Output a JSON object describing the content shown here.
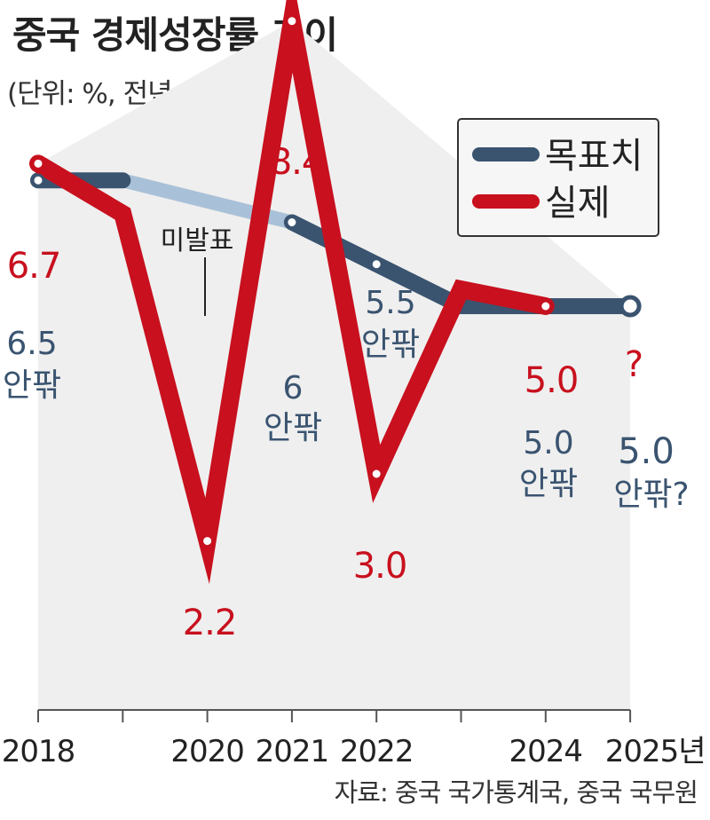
{
  "title": "중국 경제성장률 추이",
  "subtitle": "(단위: %, 전년 대비)",
  "source": "자료: 중국 국가통계국, 중국 국무원",
  "colors": {
    "target": "#3a5470",
    "target_unannounced": "#a9c1d8",
    "actual": "#c8101e",
    "area": "#efefef"
  },
  "chart_data": {
    "type": "line",
    "x": [
      "2018",
      "2019",
      "2020",
      "2021",
      "2022",
      "2023",
      "2024",
      "2025"
    ],
    "xtick_labels": [
      "2018",
      "",
      "2020",
      "2021",
      "2022",
      "",
      "2024",
      "2025년"
    ],
    "series": [
      {
        "name": "목표치",
        "values": [
          6.5,
          6.5,
          null,
          6.0,
          5.5,
          5.0,
          5.0,
          5.0
        ]
      },
      {
        "name": "실제",
        "values": [
          6.7,
          6.1,
          2.2,
          8.4,
          3.0,
          5.2,
          5.0,
          null
        ]
      }
    ],
    "ylim": [
      0,
      9
    ],
    "legend_position": "top-right",
    "annotations": {
      "unannounced": "미발표",
      "actual_labels": [
        "6.7",
        "2.2",
        "8.4",
        "3.0",
        "5.0",
        "?"
      ],
      "target_labels": [
        {
          "value": "6.5",
          "suffix": "안팎"
        },
        {
          "value": "6",
          "suffix": "안팎"
        },
        {
          "value": "5.5",
          "suffix": "안팎"
        },
        {
          "value": "5.0",
          "suffix": "안팎"
        },
        {
          "value": "5.0",
          "suffix": "안팎?"
        }
      ]
    }
  }
}
